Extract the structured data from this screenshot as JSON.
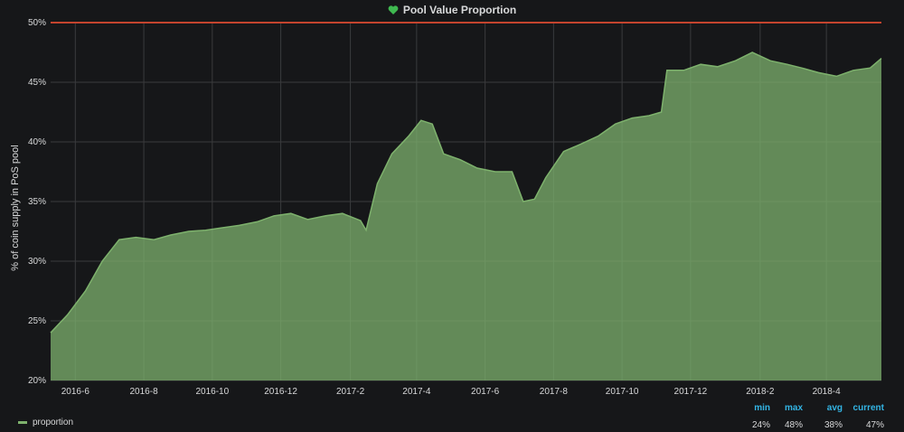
{
  "panel": {
    "title": "Pool Value Proportion",
    "heart_color": "#3fb950"
  },
  "chart_data": {
    "type": "area",
    "title": "Pool Value Proportion",
    "ylabel": "% of coin supply in PoS pool",
    "xlabel": "",
    "ylim": [
      20,
      50
    ],
    "y_ticks": [
      "50%",
      "45%",
      "40%",
      "35%",
      "30%",
      "25%",
      "20%"
    ],
    "x_ticks": [
      "2016-6",
      "2016-8",
      "2016-10",
      "2016-12",
      "2017-2",
      "2017-4",
      "2017-6",
      "2017-8",
      "2017-10",
      "2017-12",
      "2018-2",
      "2018-4"
    ],
    "threshold": 50,
    "grid": true,
    "legend_position": "bottom-left",
    "series": [
      {
        "name": "proportion",
        "color": "#7eb26d",
        "x": [
          "2016-05-10",
          "2016-05-25",
          "2016-06-10",
          "2016-06-25",
          "2016-07-10",
          "2016-07-25",
          "2016-08-10",
          "2016-08-25",
          "2016-09-10",
          "2016-09-25",
          "2016-10-10",
          "2016-10-25",
          "2016-11-10",
          "2016-11-25",
          "2016-12-10",
          "2016-12-25",
          "2017-01-10",
          "2017-01-25",
          "2017-02-10",
          "2017-02-15",
          "2017-02-25",
          "2017-03-10",
          "2017-03-25",
          "2017-04-05",
          "2017-04-15",
          "2017-04-25",
          "2017-05-10",
          "2017-05-25",
          "2017-06-10",
          "2017-06-25",
          "2017-07-05",
          "2017-07-15",
          "2017-07-25",
          "2017-08-10",
          "2017-08-25",
          "2017-09-10",
          "2017-09-25",
          "2017-10-10",
          "2017-10-25",
          "2017-11-05",
          "2017-11-10",
          "2017-11-25",
          "2017-12-10",
          "2017-12-25",
          "2018-01-10",
          "2018-01-25",
          "2018-02-10",
          "2018-02-25",
          "2018-03-10",
          "2018-03-25",
          "2018-04-10",
          "2018-04-25",
          "2018-05-10",
          "2018-05-20"
        ],
        "values": [
          24.0,
          25.5,
          27.5,
          30.0,
          31.8,
          32.0,
          31.8,
          32.2,
          32.5,
          32.6,
          32.8,
          33.0,
          33.3,
          33.8,
          34.0,
          33.5,
          33.8,
          34.0,
          33.4,
          32.6,
          36.5,
          39.0,
          40.5,
          41.8,
          41.5,
          39.0,
          38.5,
          37.8,
          37.5,
          37.5,
          35.0,
          35.2,
          37.0,
          39.2,
          39.8,
          40.5,
          41.5,
          42.0,
          42.2,
          42.5,
          46.0,
          46.0,
          46.5,
          46.3,
          46.8,
          47.5,
          46.8,
          46.5,
          46.2,
          45.8,
          45.5,
          46.0,
          46.2,
          47.0
        ]
      }
    ],
    "legend_stats": {
      "min": "24%",
      "max": "48%",
      "avg": "38%",
      "current": "47%"
    }
  },
  "legend": {
    "series_label": "proportion",
    "headers": {
      "min": "min",
      "max": "max",
      "avg": "avg",
      "current": "current"
    }
  }
}
